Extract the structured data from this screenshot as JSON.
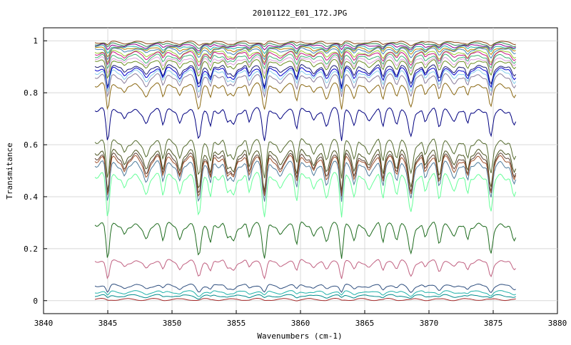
{
  "chart_data": {
    "type": "line",
    "title": "20101122_E01_172.JPG",
    "xlabel": "Wavenumbers (cm-1)",
    "ylabel": "Transmitance",
    "xlim": [
      3840,
      3880
    ],
    "ylim": [
      -0.05,
      1.05
    ],
    "x_ticks": [
      3840,
      3845,
      3850,
      3855,
      3860,
      3865,
      3870,
      3875,
      3880
    ],
    "y_ticks": [
      0,
      0.2,
      0.4,
      0.6,
      0.8,
      1
    ],
    "x_tick_labels": [
      "3840",
      "3845",
      "3850",
      "3855",
      "3860",
      "3865",
      "3870",
      "3875",
      "3880"
    ],
    "y_tick_labels": [
      "0",
      "0.2",
      "0.4",
      "0.6",
      "0.8",
      "1"
    ],
    "grid": true,
    "legend": "none",
    "x_range_data": [
      3844,
      3876.8
    ],
    "series": [
      {
        "color": "#8b4513",
        "baseline": 0.995,
        "depth": 0.01
      },
      {
        "color": "#2e8b57",
        "baseline": 0.99,
        "depth": 0.015
      },
      {
        "color": "#8b008b",
        "baseline": 0.985,
        "depth": 0.02
      },
      {
        "color": "#20b2aa",
        "baseline": 0.98,
        "depth": 0.025
      },
      {
        "color": "#b8860b",
        "baseline": 0.975,
        "depth": 0.03
      },
      {
        "color": "#4682b4",
        "baseline": 0.97,
        "depth": 0.035
      },
      {
        "color": "#9acd32",
        "baseline": 0.96,
        "depth": 0.04
      },
      {
        "color": "#c71585",
        "baseline": 0.955,
        "depth": 0.045
      },
      {
        "color": "#3cb371",
        "baseline": 0.945,
        "depth": 0.05
      },
      {
        "color": "#dda0dd",
        "baseline": 0.935,
        "depth": 0.055
      },
      {
        "color": "#6b8e23",
        "baseline": 0.925,
        "depth": 0.06
      },
      {
        "color": "#191970",
        "baseline": 0.905,
        "depth": 0.07
      },
      {
        "color": "#0000cd",
        "baseline": 0.895,
        "depth": 0.07
      },
      {
        "color": "#87ceeb",
        "baseline": 0.885,
        "depth": 0.075
      },
      {
        "color": "#8b7d9b",
        "baseline": 0.87,
        "depth": 0.08
      },
      {
        "color": "#8b6914",
        "baseline": 0.835,
        "depth": 0.09
      },
      {
        "color": "#000080",
        "baseline": 0.74,
        "depth": 0.11
      },
      {
        "color": "#556b2f",
        "baseline": 0.62,
        "depth": 0.13
      },
      {
        "color": "#4b5320",
        "baseline": 0.58,
        "depth": 0.14
      },
      {
        "color": "#5c4033",
        "baseline": 0.565,
        "depth": 0.14
      },
      {
        "color": "#a0522d",
        "baseline": 0.555,
        "depth": 0.14
      },
      {
        "color": "#4f7c9c",
        "baseline": 0.535,
        "depth": 0.14
      },
      {
        "color": "#66ff99",
        "baseline": 0.49,
        "depth": 0.15
      },
      {
        "color": "#1e6b1e",
        "baseline": 0.3,
        "depth": 0.12
      },
      {
        "color": "#c06080",
        "baseline": 0.155,
        "depth": 0.06
      },
      {
        "color": "#2f4f7f",
        "baseline": 0.06,
        "depth": 0.025
      },
      {
        "color": "#20b2aa",
        "baseline": 0.035,
        "depth": 0.015
      },
      {
        "color": "#008b8b",
        "baseline": 0.02,
        "depth": 0.01
      },
      {
        "color": "#a52a2a",
        "baseline": 0.005,
        "depth": 0.003
      }
    ],
    "absorption_lines": [
      3845.0,
      3846.3,
      3848.0,
      3849.3,
      3850.6,
      3852.1,
      3853.0,
      3854.3,
      3854.8,
      3856.0,
      3857.2,
      3858.4,
      3859.7,
      3861.0,
      3862.0,
      3863.2,
      3864.2,
      3865.3,
      3866.4,
      3867.5,
      3868.6,
      3869.7,
      3870.8,
      3872.0,
      3873.0,
      3874.8,
      3876.6
    ]
  }
}
